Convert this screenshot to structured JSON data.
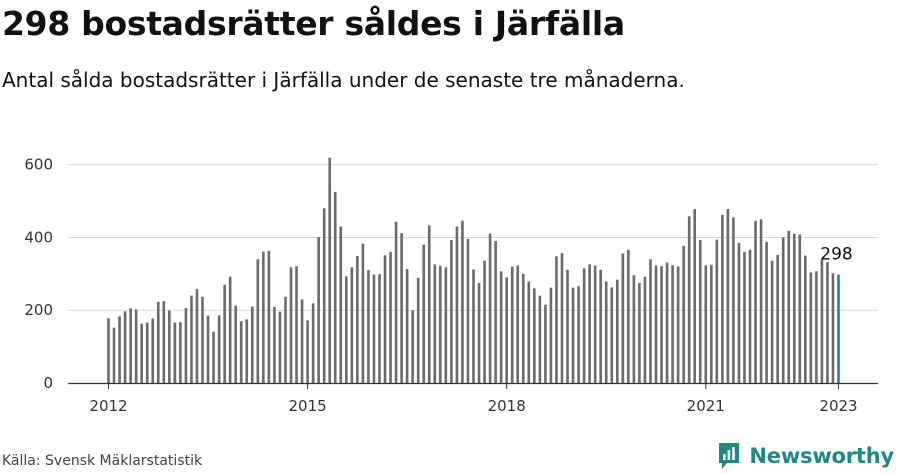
{
  "header": {
    "title": "298 bostadsrätter såldes i Järfälla",
    "subtitle": "Antal sålda bostadsrätter i Järfälla under de senaste tre månaderna."
  },
  "footer": {
    "source": "Källa: Svensk Mäklarstatistik",
    "brand_name": "Newsworthy",
    "brand_icon": "newsworthy-logo-icon"
  },
  "colors": {
    "bar": "#6b6b6b",
    "highlight": "#1a8a99",
    "grid": "#d9d9d9",
    "axis": "#333333",
    "brand": "#1d8a84"
  },
  "chart_data": {
    "type": "bar",
    "title": "298 bostadsrätter såldes i Järfälla",
    "subtitle": "Antal sålda bostadsrätter i Järfälla under de senaste tre månaderna.",
    "xlabel": "",
    "ylabel": "",
    "x_start": "2012-01",
    "x_tick_labels": [
      "2012",
      "2015",
      "2018",
      "2021",
      "2023"
    ],
    "y_ticks": [
      0,
      200,
      400,
      600
    ],
    "ylim": [
      0,
      640
    ],
    "grid": true,
    "series": [
      {
        "values": [
          178,
          152,
          183,
          197,
          205,
          202,
          163,
          166,
          177,
          223,
          225,
          199,
          166,
          167,
          206,
          240,
          258,
          237,
          185,
          141,
          186,
          270,
          292,
          213,
          170,
          175,
          210,
          340,
          361,
          363,
          209,
          196,
          237,
          318,
          321,
          230,
          172,
          219,
          401,
          480,
          619,
          525,
          430,
          293,
          318,
          349,
          383,
          310,
          298,
          299,
          351,
          360,
          443,
          412,
          313,
          200,
          289,
          380,
          433,
          326,
          322,
          318,
          393,
          430,
          446,
          396,
          312,
          275,
          336,
          411,
          390,
          307,
          290,
          320,
          323,
          300,
          279,
          260,
          240,
          215,
          262,
          348,
          357,
          311,
          262,
          266,
          315,
          326,
          323,
          311,
          279,
          263,
          284,
          356,
          366,
          296,
          275,
          292,
          340,
          323,
          321,
          331,
          324,
          320,
          377,
          458,
          478,
          393,
          323,
          325,
          394,
          462,
          478,
          455,
          385,
          360,
          366,
          446,
          450,
          388,
          336,
          352,
          400,
          418,
          410,
          408,
          350,
          304,
          307,
          340,
          332,
          302,
          298
        ]
      }
    ],
    "highlight": {
      "label": "298",
      "value": 298,
      "month": "2023-01"
    }
  }
}
